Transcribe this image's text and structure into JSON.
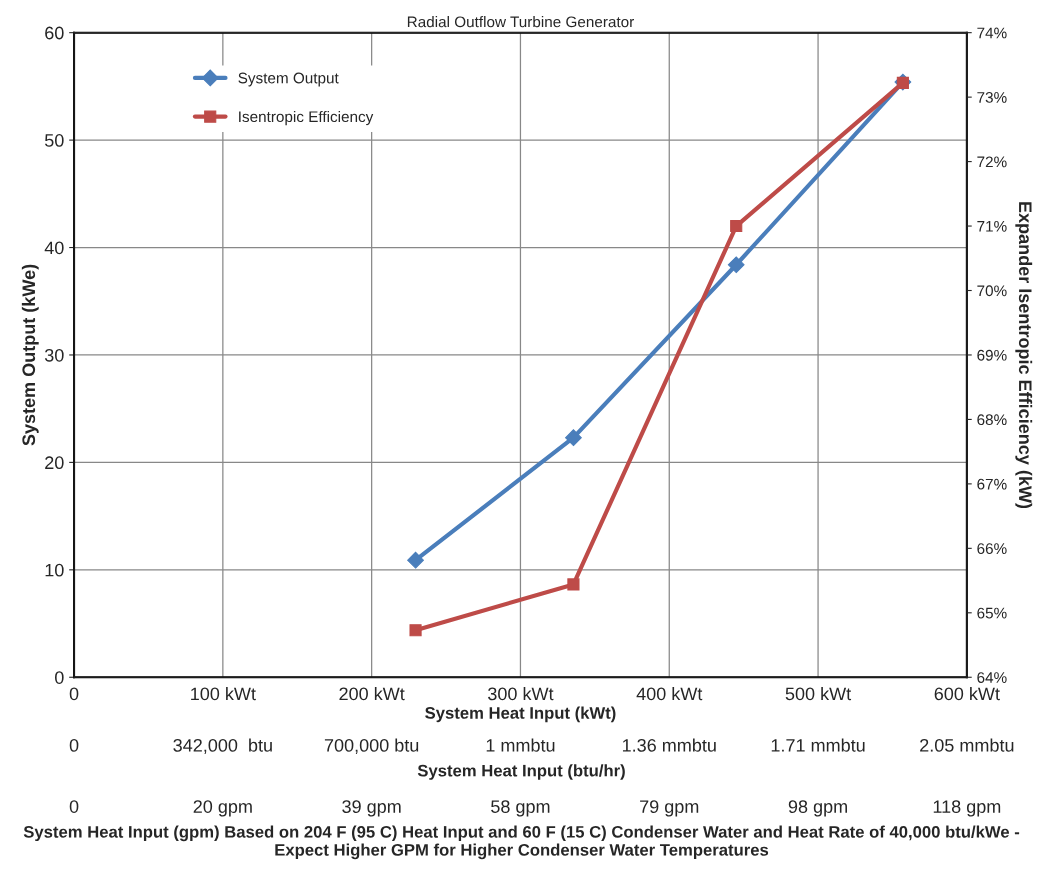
{
  "chart_data": {
    "type": "line",
    "subtitle": "Radial Outflow Turbine Generator",
    "xlabel": "System Heat Input (kWt)",
    "ylabel": "System Output (kWe)",
    "y2label": "Expander Isentropic Efficiency (kW)",
    "annotations": [
      "0",
      "342,000  btu",
      "700,000 btu",
      "1 mmbtu",
      "1.36 mmbtu",
      "1.71 mmbtu",
      "2.05 mmbtu",
      "System Heat Input (btu/hr)",
      "0",
      "20 gpm",
      "39 gpm",
      "58 gpm",
      "79 gpm",
      "98 gpm",
      "118 gpm",
      "System Heat Input (gpm) Based on 204 F (95 C) Heat Input and 60 F (15 C) Condenser Water and Heat Rate of 40,000 btu/kWe - Expect Higher GPM for Higher Condenser Water Temperatures"
    ],
    "x": [
      229.5,
      335.6,
      445,
      557
    ],
    "series": [
      {
        "name": "System Output",
        "color": "#4a7ebb",
        "marker": "diamond",
        "values": [
          10.9,
          22.3,
          38.4,
          55.4
        ]
      },
      {
        "name": "Isentropic Efficiency",
        "color": "#be4b48",
        "marker": "square",
        "axis": "y2",
        "values": [
          64.73,
          65.44,
          71.0,
          73.22
        ]
      }
    ],
    "xlim": [
      0,
      600
    ],
    "xticks": [
      0,
      {
        "value": 100,
        "label": "100 kWt"
      },
      {
        "value": 200,
        "label": "200 kWt"
      },
      {
        "value": 300,
        "label": "300 kWt"
      },
      {
        "value": 400,
        "label": "400 kWt"
      },
      {
        "value": 500,
        "label": "500 kWt"
      },
      {
        "value": 600,
        "label": "600 kWt"
      }
    ],
    "ylim": [
      0,
      60
    ],
    "yticks": [
      0,
      10,
      20,
      30,
      40,
      50,
      60
    ],
    "y2lim": [
      64,
      74
    ],
    "y2ticks": [
      {
        "value": 64,
        "label": "64%"
      },
      {
        "value": 65,
        "label": "65%"
      },
      {
        "value": 66,
        "label": "66%"
      },
      {
        "value": 67,
        "label": "67%"
      },
      {
        "value": 68,
        "label": "68%"
      },
      {
        "value": 69,
        "label": "69%"
      },
      {
        "value": 70,
        "label": "70%"
      },
      {
        "value": 71,
        "label": "71%"
      },
      {
        "value": 72,
        "label": "72%"
      },
      {
        "value": 73,
        "label": "73%"
      },
      {
        "value": 74,
        "label": "74%"
      }
    ],
    "grid": true,
    "legend": "top left",
    "line_style": "solid"
  }
}
